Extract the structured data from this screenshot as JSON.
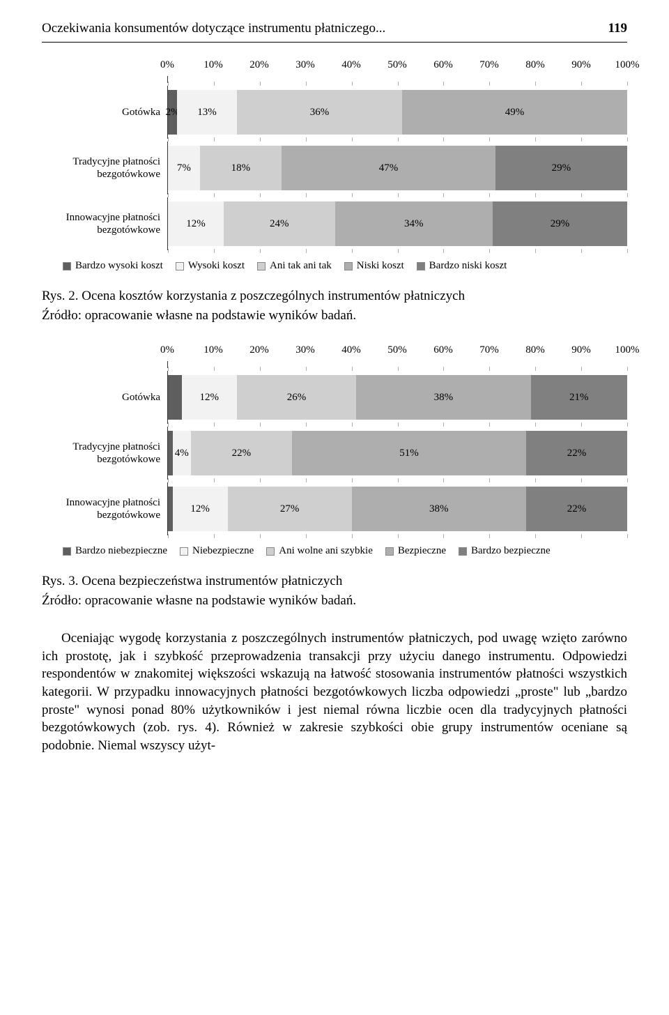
{
  "header": {
    "title": "Oczekiwania konsumentów dotyczące instrumentu płatniczego...",
    "page_number": "119"
  },
  "chart1": {
    "type": "stacked-bar-horizontal",
    "x_ticks": [
      "0%",
      "10%",
      "20%",
      "30%",
      "40%",
      "50%",
      "60%",
      "70%",
      "80%",
      "90%",
      "100%"
    ],
    "series_colors": [
      "#5e5e5e",
      "#f2f2f2",
      "#cfcfcf",
      "#aeaeae",
      "#808080"
    ],
    "rows": [
      {
        "label_lines": [
          "Gotówka"
        ],
        "values": [
          2,
          13,
          36,
          49,
          0
        ],
        "labels": [
          "2%",
          "13%",
          "36%",
          "49%",
          ""
        ]
      },
      {
        "label_lines": [
          "Tradycyjne płatności",
          "bezgotówkowe"
        ],
        "values": [
          0,
          7,
          18,
          47,
          29
        ],
        "labels": [
          "",
          "7%",
          "18%",
          "47%",
          "29%"
        ]
      },
      {
        "label_lines": [
          "Innowacyjne płatności",
          "bezgotówkowe"
        ],
        "values": [
          0,
          12,
          24,
          34,
          29
        ],
        "labels": [
          "",
          "12%",
          "24%",
          "34%",
          "29%"
        ]
      }
    ],
    "legend": [
      "Bardzo wysoki koszt",
      "Wysoki koszt",
      "Ani tak ani tak",
      "Niski koszt",
      "Bardzo niski koszt"
    ]
  },
  "caption1": {
    "title": "Rys. 2. Ocena kosztów korzystania z poszczególnych instrumentów płatniczych",
    "source": "Źródło: opracowanie własne na podstawie wyników badań."
  },
  "chart2": {
    "type": "stacked-bar-horizontal",
    "x_ticks": [
      "0%",
      "10%",
      "20%",
      "30%",
      "40%",
      "50%",
      "60%",
      "70%",
      "80%",
      "90%",
      "100%"
    ],
    "series_colors": [
      "#5e5e5e",
      "#f2f2f2",
      "#cfcfcf",
      "#aeaeae",
      "#808080"
    ],
    "rows": [
      {
        "label_lines": [
          "Gotówka"
        ],
        "values": [
          3,
          12,
          26,
          38,
          21
        ],
        "labels": [
          "",
          "12%",
          "26%",
          "38%",
          "21%"
        ]
      },
      {
        "label_lines": [
          "Tradycyjne płatności",
          "bezgotówkowe"
        ],
        "values": [
          1,
          4,
          22,
          51,
          22
        ],
        "labels": [
          "",
          "4%",
          "22%",
          "51%",
          "22%"
        ]
      },
      {
        "label_lines": [
          "Innowacyjne płatności",
          "bezgotówkowe"
        ],
        "values": [
          1,
          12,
          27,
          38,
          22
        ],
        "labels": [
          "",
          "12%",
          "27%",
          "38%",
          "22%"
        ]
      }
    ],
    "legend": [
      "Bardzo niebezpieczne",
      "Niebezpieczne",
      "Ani wolne ani szybkie",
      "Bezpieczne",
      "Bardzo bezpieczne"
    ]
  },
  "caption2": {
    "title": "Rys. 3. Ocena bezpieczeństwa instrumentów płatniczych",
    "source": "Źródło: opracowanie własne na podstawie wyników badań."
  },
  "body": {
    "para1": "Oceniając wygodę korzystania z poszczególnych instrumentów płatniczych, pod uwagę wzięto zarówno ich prostotę, jak i szybkość przeprowadzenia transakcji przy użyciu danego instrumentu. Odpowiedzi respondentów w znakomitej większości wskazują na łatwość stosowania instrumentów płatności wszystkich kategorii. W przypadku innowacyjnych płatności bezgotówkowych liczba odpowiedzi „proste\" lub „bardzo proste\" wynosi ponad 80% użytkowników i jest niemal równa liczbie ocen dla tradycyjnych płatności bezgotówkowych (zob. rys. 4). Również w zakresie szybkości obie grupy instrumentów oceniane są podobnie. Niemal wszyscy użyt-"
  }
}
